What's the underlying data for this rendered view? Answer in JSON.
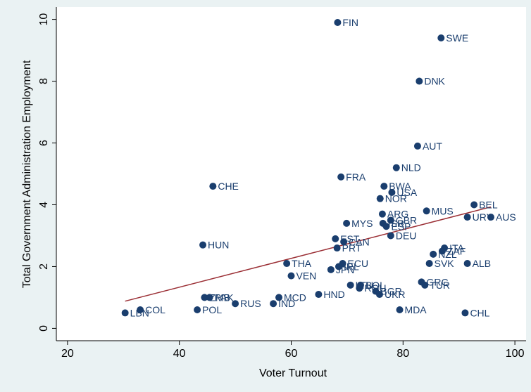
{
  "chart_data": {
    "type": "scatter",
    "xlabel": "Voter Turnout",
    "ylabel": "Total Government Administration Employment",
    "xlim": [
      18,
      102
    ],
    "ylim": [
      -0.4,
      10.4
    ],
    "x_ticks": [
      20,
      40,
      60,
      80,
      100
    ],
    "y_ticks": [
      0,
      2,
      4,
      6,
      8,
      10
    ],
    "grid": false,
    "colors": {
      "background": "#eaf2f3",
      "plot": "#ffffff",
      "marker": "#1a3e6e",
      "fit_line": "#9b2f35",
      "axis": "#000000"
    },
    "points": [
      {
        "label": "FIN",
        "x": 68.3,
        "y": 9.9
      },
      {
        "label": "SWE",
        "x": 86.8,
        "y": 9.4
      },
      {
        "label": "DNK",
        "x": 82.9,
        "y": 8.0
      },
      {
        "label": "AUT",
        "x": 82.6,
        "y": 5.9
      },
      {
        "label": "NLD",
        "x": 78.8,
        "y": 5.2
      },
      {
        "label": "FRA",
        "x": 68.9,
        "y": 4.9
      },
      {
        "label": "CHE",
        "x": 46.0,
        "y": 4.6
      },
      {
        "label": "BWA",
        "x": 76.6,
        "y": 4.6
      },
      {
        "label": "USA",
        "x": 78.0,
        "y": 4.4
      },
      {
        "label": "NOR",
        "x": 75.9,
        "y": 4.2
      },
      {
        "label": "BEL",
        "x": 92.7,
        "y": 4.0
      },
      {
        "label": "MUS",
        "x": 84.2,
        "y": 3.8
      },
      {
        "label": "ARG",
        "x": 76.3,
        "y": 3.7
      },
      {
        "label": "URY",
        "x": 91.5,
        "y": 3.6
      },
      {
        "label": "AUS",
        "x": 95.7,
        "y": 3.6
      },
      {
        "label": "GBR",
        "x": 77.8,
        "y": 3.5
      },
      {
        "label": "MYS",
        "x": 69.9,
        "y": 3.4
      },
      {
        "label": "ISR",
        "x": 76.4,
        "y": 3.4
      },
      {
        "label": "ESP",
        "x": 77.0,
        "y": 3.3
      },
      {
        "label": "DEU",
        "x": 77.8,
        "y": 3.0
      },
      {
        "label": "EST",
        "x": 67.9,
        "y": 2.9
      },
      {
        "label": "CAN",
        "x": 69.4,
        "y": 2.8
      },
      {
        "label": "HUN",
        "x": 44.2,
        "y": 2.7
      },
      {
        "label": "PRT",
        "x": 68.2,
        "y": 2.6
      },
      {
        "label": "ITA",
        "x": 87.4,
        "y": 2.6
      },
      {
        "label": "ZAF",
        "x": 87.0,
        "y": 2.5
      },
      {
        "label": "NZL",
        "x": 85.4,
        "y": 2.4
      },
      {
        "label": "THA",
        "x": 59.2,
        "y": 2.1
      },
      {
        "label": "ECU",
        "x": 69.2,
        "y": 2.1
      },
      {
        "label": "SVK",
        "x": 84.7,
        "y": 2.1
      },
      {
        "label": "ALB",
        "x": 91.5,
        "y": 2.1
      },
      {
        "label": "IRL",
        "x": 68.5,
        "y": 2.0
      },
      {
        "label": "JPN",
        "x": 67.1,
        "y": 1.9
      },
      {
        "label": "VEN",
        "x": 60.0,
        "y": 1.7
      },
      {
        "label": "GRC",
        "x": 83.3,
        "y": 1.5
      },
      {
        "label": "TUR",
        "x": 83.9,
        "y": 1.4
      },
      {
        "label": "BOL",
        "x": 72.4,
        "y": 1.4
      },
      {
        "label": "LTU",
        "x": 70.6,
        "y": 1.4
      },
      {
        "label": "ROU",
        "x": 72.2,
        "y": 1.3
      },
      {
        "label": "BGR",
        "x": 75.1,
        "y": 1.2
      },
      {
        "label": "UKR",
        "x": 75.8,
        "y": 1.1
      },
      {
        "label": "HND",
        "x": 64.9,
        "y": 1.1
      },
      {
        "label": "ZMB",
        "x": 44.5,
        "y": 1.0
      },
      {
        "label": "PAK",
        "x": 45.4,
        "y": 1.0
      },
      {
        "label": "MCD",
        "x": 57.8,
        "y": 1.0
      },
      {
        "label": "RUS",
        "x": 50.0,
        "y": 0.8
      },
      {
        "label": "IND",
        "x": 56.8,
        "y": 0.8
      },
      {
        "label": "COL",
        "x": 33.0,
        "y": 0.6
      },
      {
        "label": "POL",
        "x": 43.2,
        "y": 0.6
      },
      {
        "label": "MDA",
        "x": 79.4,
        "y": 0.6
      },
      {
        "label": "LBN",
        "x": 30.3,
        "y": 0.5
      },
      {
        "label": "CHL",
        "x": 91.1,
        "y": 0.5
      }
    ],
    "fit_line": {
      "x": [
        30.3,
        95.7
      ],
      "y": [
        0.88,
        3.93
      ]
    }
  }
}
